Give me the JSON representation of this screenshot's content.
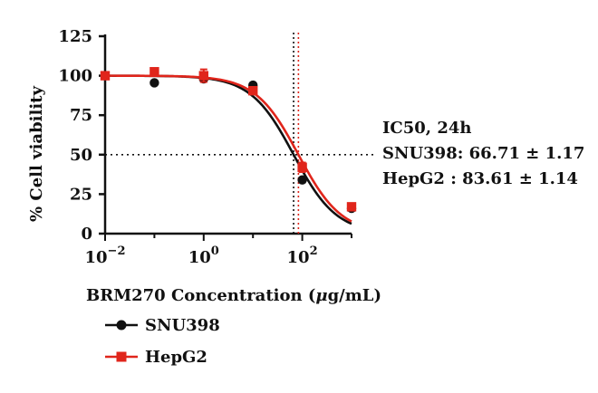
{
  "chart_data": {
    "type": "line",
    "xscale": "log",
    "xlabel": "BRM270 Concentration (",
    "xlabel_unit_mu": "μ",
    "xlabel_unit_rest": "g/mL)",
    "ylabel": "% Cell viability",
    "xlim": [
      0.01,
      1000
    ],
    "ylim": [
      0,
      125
    ],
    "yticks": [
      0,
      25,
      50,
      75,
      100,
      125
    ],
    "ytick_labels": [
      "0",
      "25",
      "50",
      "75",
      "100",
      "125"
    ],
    "xticks": [
      0.01,
      1,
      100
    ],
    "xtick_labels": [
      {
        "base": "10",
        "exp": "−2"
      },
      {
        "base": "10",
        "exp": "0"
      },
      {
        "base": "10",
        "exp": "2"
      }
    ],
    "reference_line_y": 50,
    "series": [
      {
        "name": "SNU398",
        "color": "#111111",
        "marker": "circle",
        "x": [
          0.01,
          0.1,
          1,
          10,
          100,
          1000
        ],
        "y": [
          100,
          95.5,
          98,
          94,
          34,
          16
        ],
        "err": [
          0,
          0,
          1.5,
          0,
          1.5,
          1
        ],
        "ic50": 66.71,
        "hill": 1.0
      },
      {
        "name": "HepG2",
        "color": "#e0251b",
        "marker": "square",
        "x": [
          0.01,
          0.1,
          1,
          10,
          100,
          1000
        ],
        "y": [
          100,
          102.5,
          100,
          90.5,
          42,
          17
        ],
        "err": [
          0,
          1.5,
          4,
          1.5,
          3,
          1.5
        ],
        "ic50": 83.61,
        "hill": 1.0
      }
    ],
    "annotations": [
      "IC50, 24h",
      "SNU398: 66.71 ± 1.17",
      "HepG2 : 83.61 ± 1.14"
    ]
  }
}
